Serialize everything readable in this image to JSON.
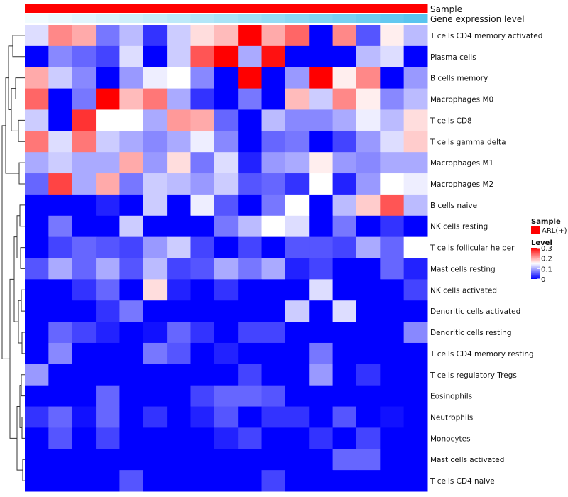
{
  "chart_data": {
    "type": "heatmap",
    "annotations": [
      {
        "label": "Sample",
        "colors": [
          "#ff0000",
          "#ff0000",
          "#ff0000",
          "#ff0000",
          "#ff0000",
          "#ff0000",
          "#ff0000",
          "#ff0000",
          "#ff0000",
          "#ff0000",
          "#ff0000",
          "#ff0000",
          "#ff0000",
          "#ff0000",
          "#ff0000",
          "#ff0000",
          "#ff0000"
        ]
      },
      {
        "label": "Gene expression level",
        "colors": [
          "#f2fbfe",
          "#eaf8fd",
          "#e1f5fd",
          "#d8f2fc",
          "#cfeffb",
          "#c6ecfa",
          "#bde9f9",
          "#b3e6f8",
          "#a9e3f7",
          "#9fe0f6",
          "#95dcf5",
          "#8bd8f4",
          "#81d4f3",
          "#77d0f2",
          "#6dccf1",
          "#63c8f0",
          "#59c4ef"
        ]
      }
    ],
    "rows": [
      "T cells CD4 memory activated",
      "Plasma cells",
      "B cells memory",
      "Macrophages M0",
      "T cells CD8",
      "T cells gamma delta",
      "Macrophages M1",
      "Macrophages M2",
      "B cells naive",
      "NK cells resting",
      "T cells follicular helper",
      "Mast cells resting",
      "NK cells activated",
      "Dendritic cells activated",
      "Dendritic cells resting",
      "T cells CD4 memory resting",
      "T cells regulatory  Tregs",
      "Eosinophils",
      "Neutrophils",
      "Monocytes",
      "Mast cells activated",
      "T cells CD4 naive"
    ],
    "values": [
      [
        0.13,
        0.22,
        0.2,
        0.07,
        0.11,
        0.03,
        0.12,
        0.17,
        0.19,
        0.3,
        0.2,
        0.24,
        0.0,
        0.22,
        0.05,
        0.16,
        0.11
      ],
      [
        0.0,
        0.08,
        0.06,
        0.04,
        0.13,
        0.0,
        0.12,
        0.25,
        0.3,
        0.1,
        0.29,
        0.0,
        0.0,
        0.0,
        0.11,
        0.13,
        0.0
      ],
      [
        0.2,
        0.12,
        0.08,
        0.0,
        0.09,
        0.14,
        0.15,
        0.08,
        0.0,
        0.3,
        0.0,
        0.09,
        0.3,
        0.16,
        0.22,
        0.0,
        0.09
      ],
      [
        0.24,
        0.0,
        0.07,
        0.3,
        0.19,
        0.23,
        0.1,
        0.03,
        0.0,
        0.07,
        0.0,
        0.19,
        0.12,
        0.22,
        0.16,
        0.08,
        0.11
      ],
      [
        0.12,
        0.0,
        0.27,
        0.15,
        0.15,
        0.1,
        0.21,
        0.2,
        0.06,
        0.0,
        0.11,
        0.08,
        0.08,
        0.1,
        0.14,
        0.11,
        0.17
      ],
      [
        0.23,
        0.13,
        0.23,
        0.12,
        0.1,
        0.08,
        0.1,
        0.14,
        0.08,
        0.0,
        0.06,
        0.07,
        0.0,
        0.04,
        0.09,
        0.13,
        0.18
      ],
      [
        0.1,
        0.12,
        0.1,
        0.1,
        0.2,
        0.09,
        0.17,
        0.07,
        0.13,
        0.02,
        0.09,
        0.1,
        0.16,
        0.09,
        0.08,
        0.1,
        0.1
      ],
      [
        0.06,
        0.26,
        0.1,
        0.2,
        0.07,
        0.12,
        0.11,
        0.09,
        0.12,
        0.05,
        0.06,
        0.03,
        0.15,
        0.02,
        0.09,
        0.15,
        0.14
      ],
      [
        0.0,
        0.0,
        0.0,
        0.02,
        0.0,
        0.12,
        0.0,
        0.14,
        0.05,
        0.0,
        0.07,
        0.15,
        0.0,
        0.11,
        0.18,
        0.25,
        0.11
      ],
      [
        0.0,
        0.07,
        0.0,
        0.0,
        0.12,
        0.0,
        0.0,
        0.0,
        0.07,
        0.11,
        0.15,
        0.13,
        0.0,
        0.07,
        0.0,
        0.03,
        0.0
      ],
      [
        0.0,
        0.04,
        0.06,
        0.05,
        0.04,
        0.09,
        0.12,
        0.04,
        0.0,
        0.04,
        0.0,
        0.05,
        0.05,
        0.04,
        0.1,
        0.06,
        0.15
      ],
      [
        0.05,
        0.1,
        0.06,
        0.1,
        0.05,
        0.11,
        0.04,
        0.05,
        0.1,
        0.07,
        0.1,
        0.02,
        0.04,
        0.0,
        0.0,
        0.06,
        0.02
      ],
      [
        0.0,
        0.0,
        0.03,
        0.06,
        0.0,
        0.17,
        0.02,
        0.0,
        0.03,
        0.0,
        0.0,
        0.0,
        0.13,
        0.0,
        0.0,
        0.0,
        0.04
      ],
      [
        0.0,
        0.0,
        0.0,
        0.03,
        0.07,
        0.0,
        0.0,
        0.0,
        0.0,
        0.0,
        0.0,
        0.12,
        0.0,
        0.13,
        0.0,
        0.0,
        0.0
      ],
      [
        0.0,
        0.06,
        0.04,
        0.02,
        0.0,
        0.01,
        0.06,
        0.03,
        0.0,
        0.04,
        0.04,
        0.0,
        0.0,
        0.0,
        0.0,
        0.0,
        0.08
      ],
      [
        0.0,
        0.08,
        0.0,
        0.0,
        0.0,
        0.07,
        0.05,
        0.0,
        0.02,
        0.0,
        0.0,
        0.0,
        0.07,
        0.0,
        0.0,
        0.0,
        0.0
      ],
      [
        0.09,
        0.0,
        0.0,
        0.0,
        0.0,
        0.0,
        0.0,
        0.0,
        0.0,
        0.04,
        0.0,
        0.0,
        0.09,
        0.0,
        0.03,
        0.0,
        0.0
      ],
      [
        0.0,
        0.0,
        0.0,
        0.06,
        0.0,
        0.0,
        0.0,
        0.04,
        0.06,
        0.06,
        0.05,
        0.0,
        0.0,
        0.0,
        0.0,
        0.0,
        0.0
      ],
      [
        0.03,
        0.06,
        0.01,
        0.06,
        0.0,
        0.03,
        0.0,
        0.02,
        0.05,
        0.0,
        0.03,
        0.03,
        0.0,
        0.05,
        0.0,
        0.01,
        0.0
      ],
      [
        0.0,
        0.05,
        0.0,
        0.04,
        0.0,
        0.0,
        0.0,
        0.0,
        0.02,
        0.04,
        0.0,
        0.0,
        0.03,
        0.0,
        0.04,
        0.0,
        0.0
      ],
      [
        0.0,
        0.0,
        0.0,
        0.0,
        0.0,
        0.0,
        0.0,
        0.0,
        0.0,
        0.0,
        0.0,
        0.0,
        0.0,
        0.06,
        0.06,
        0.0,
        0.0
      ],
      [
        0.0,
        0.0,
        0.0,
        0.0,
        0.05,
        0.0,
        0.0,
        0.0,
        0.0,
        0.0,
        0.04,
        0.0,
        0.0,
        0.0,
        0.0,
        0.0,
        0.0
      ]
    ],
    "legend": {
      "sample_title": "Sample",
      "sample_entry": "ARL(+)",
      "sample_color": "#ff0000",
      "level_title": "Level",
      "ticks": [
        0.3,
        0.2,
        0.1,
        0
      ],
      "tick_labels": [
        "0.3",
        "0.2",
        "0.1",
        "0"
      ],
      "range": [
        0,
        0.3
      ],
      "colors": {
        "low": "#0000ff",
        "mid": "#ffffff",
        "high": "#ff0000"
      },
      "placement": "right"
    },
    "dendrogram": "rows, left side"
  }
}
